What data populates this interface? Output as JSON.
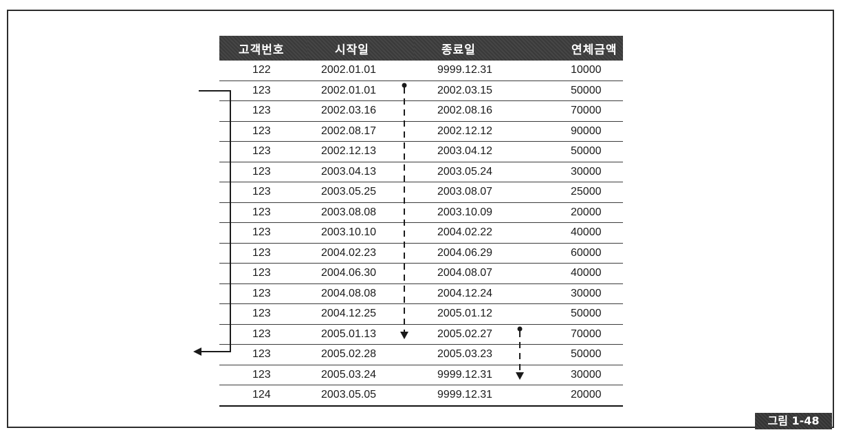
{
  "table": {
    "headers": [
      "고객번호",
      "시작일",
      "종료일",
      "연체금액"
    ],
    "rows": [
      [
        "122",
        "2002.01.01",
        "9999.12.31",
        "10000"
      ],
      [
        "123",
        "2002.01.01",
        "2002.03.15",
        "50000"
      ],
      [
        "123",
        "2002.03.16",
        "2002.08.16",
        "70000"
      ],
      [
        "123",
        "2002.08.17",
        "2002.12.12",
        "90000"
      ],
      [
        "123",
        "2002.12.13",
        "2003.04.12",
        "50000"
      ],
      [
        "123",
        "2003.04.13",
        "2003.05.24",
        "30000"
      ],
      [
        "123",
        "2003.05.25",
        "2003.08.07",
        "25000"
      ],
      [
        "123",
        "2003.08.08",
        "2003.10.09",
        "20000"
      ],
      [
        "123",
        "2003.10.10",
        "2004.02.22",
        "40000"
      ],
      [
        "123",
        "2004.02.23",
        "2004.06.29",
        "60000"
      ],
      [
        "123",
        "2004.06.30",
        "2004.08.07",
        "40000"
      ],
      [
        "123",
        "2004.08.08",
        "2004.12.24",
        "30000"
      ],
      [
        "123",
        "2004.12.25",
        "2005.01.12",
        "50000"
      ],
      [
        "123",
        "2005.01.13",
        "2005.02.27",
        "70000"
      ],
      [
        "123",
        "2005.02.28",
        "2005.03.23",
        "50000"
      ],
      [
        "123",
        "2005.03.24",
        "9999.12.31",
        "30000"
      ],
      [
        "124",
        "2003.05.05",
        "9999.12.31",
        "20000"
      ]
    ]
  },
  "figure_label": "그림 1-48",
  "colors": {
    "header_bg": "#3a3a3a",
    "line": "#1a1a1a"
  }
}
